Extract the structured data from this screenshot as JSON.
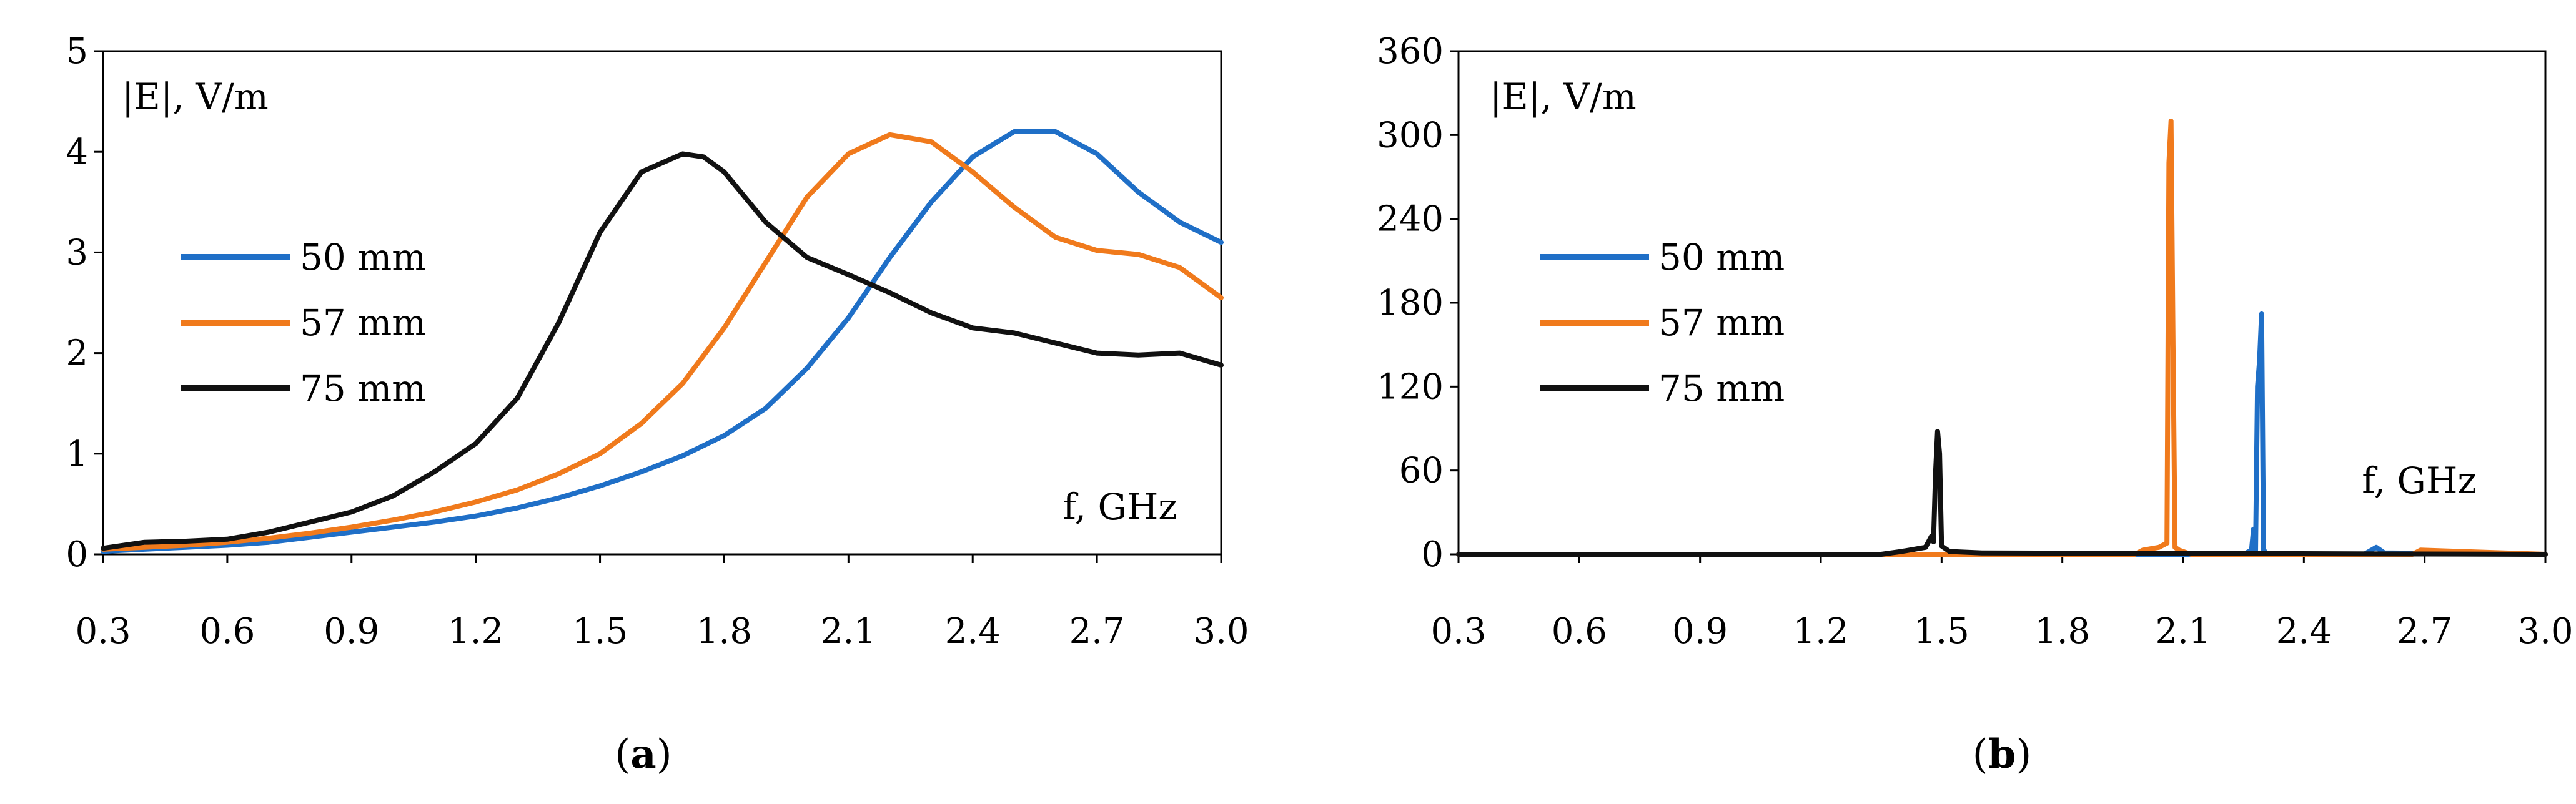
{
  "charts": [
    {
      "id": "a",
      "chart_data": {
        "type": "line",
        "caption_open": "(",
        "caption_letter": "a",
        "caption_close": ")",
        "ylabel": "|E|, V/m",
        "xlabel": "f, GHz",
        "xlim": [
          0.3,
          3.0
        ],
        "ylim": [
          0,
          5
        ],
        "xticks": [
          "0.3",
          "0.6",
          "0.9",
          "1.2",
          "1.5",
          "1.8",
          "2.1",
          "2.4",
          "2.7",
          "3.0"
        ],
        "yticks": [
          "0",
          "1",
          "2",
          "3",
          "4",
          "5"
        ],
        "legend": {
          "position": "middle-left"
        },
        "series": [
          {
            "name": "50 mm",
            "color": "#1f6fc7",
            "x": [
              0.3,
              0.4,
              0.5,
              0.6,
              0.7,
              0.8,
              0.9,
              1.0,
              1.1,
              1.2,
              1.3,
              1.4,
              1.5,
              1.6,
              1.7,
              1.8,
              1.9,
              2.0,
              2.1,
              2.2,
              2.3,
              2.4,
              2.5,
              2.6,
              2.7,
              2.8,
              2.9,
              3.0
            ],
            "y": [
              0.03,
              0.05,
              0.07,
              0.09,
              0.12,
              0.17,
              0.22,
              0.27,
              0.32,
              0.38,
              0.46,
              0.56,
              0.68,
              0.82,
              0.98,
              1.18,
              1.45,
              1.85,
              2.35,
              2.95,
              3.5,
              3.95,
              4.2,
              4.2,
              3.98,
              3.6,
              3.3,
              3.1
            ]
          },
          {
            "name": "57 mm",
            "color": "#f07a1c",
            "x": [
              0.3,
              0.4,
              0.5,
              0.6,
              0.7,
              0.8,
              0.9,
              1.0,
              1.1,
              1.2,
              1.3,
              1.4,
              1.5,
              1.6,
              1.7,
              1.8,
              1.9,
              2.0,
              2.1,
              2.2,
              2.3,
              2.4,
              2.5,
              2.6,
              2.7,
              2.8,
              2.9,
              3.0
            ],
            "y": [
              0.05,
              0.07,
              0.09,
              0.12,
              0.16,
              0.21,
              0.27,
              0.34,
              0.42,
              0.52,
              0.64,
              0.8,
              1.0,
              1.3,
              1.7,
              2.25,
              2.9,
              3.55,
              3.98,
              4.17,
              4.1,
              3.8,
              3.45,
              3.15,
              3.02,
              2.98,
              2.85,
              2.55
            ]
          },
          {
            "name": "75 mm",
            "color": "#111111",
            "x": [
              0.3,
              0.4,
              0.5,
              0.6,
              0.7,
              0.8,
              0.9,
              1.0,
              1.1,
              1.2,
              1.3,
              1.4,
              1.5,
              1.6,
              1.7,
              1.75,
              1.8,
              1.9,
              2.0,
              2.1,
              2.2,
              2.3,
              2.4,
              2.5,
              2.6,
              2.7,
              2.8,
              2.9,
              3.0
            ],
            "y": [
              0.06,
              0.12,
              0.13,
              0.15,
              0.22,
              0.32,
              0.42,
              0.58,
              0.82,
              1.1,
              1.55,
              2.3,
              3.2,
              3.8,
              3.98,
              3.95,
              3.8,
              3.3,
              2.95,
              2.78,
              2.6,
              2.4,
              2.25,
              2.2,
              2.1,
              2.0,
              1.98,
              2.0,
              1.88
            ]
          }
        ]
      }
    },
    {
      "id": "b",
      "chart_data": {
        "type": "line",
        "caption_open": "(",
        "caption_letter": "b",
        "caption_close": ")",
        "ylabel": "|E|, V/m",
        "xlabel": "f, GHz",
        "xlim": [
          0.3,
          3.0
        ],
        "ylim": [
          0,
          360
        ],
        "xticks": [
          "0.3",
          "0.6",
          "0.9",
          "1.2",
          "1.5",
          "1.8",
          "2.1",
          "2.4",
          "2.7",
          "3.0"
        ],
        "yticks": [
          "0",
          "60",
          "120",
          "180",
          "240",
          "300",
          "360"
        ],
        "legend": {
          "position": "middle-left"
        },
        "series": [
          {
            "name": "50 mm",
            "color": "#1f6fc7",
            "x": [
              0.3,
              2.25,
              2.27,
              2.275,
              2.28,
              2.285,
              2.29,
              2.295,
              2.3,
              2.31,
              2.35,
              2.55,
              2.58,
              2.6,
              3.0
            ],
            "y": [
              0,
              0,
              3,
              18,
              2,
              120,
              138,
              172,
              3,
              0,
              0,
              0,
              5,
              1,
              0
            ]
          },
          {
            "name": "57 mm",
            "color": "#f07a1c",
            "x": [
              0.3,
              1.98,
              2.0,
              2.04,
              2.06,
              2.065,
              2.07,
              2.075,
              2.08,
              2.09,
              2.12,
              2.67,
              2.69,
              3.0
            ],
            "y": [
              0,
              0,
              3,
              5,
              8,
              280,
              310,
              150,
              5,
              3,
              0,
              0,
              3,
              0
            ]
          },
          {
            "name": "75 mm",
            "color": "#111111",
            "x": [
              0.3,
              1.35,
              1.4,
              1.46,
              1.475,
              1.48,
              1.485,
              1.49,
              1.495,
              1.5,
              1.52,
              1.6,
              3.0
            ],
            "y": [
              0,
              0,
              2,
              5,
              13,
              9,
              58,
              88,
              72,
              6,
              2,
              1,
              0
            ]
          }
        ]
      }
    }
  ]
}
